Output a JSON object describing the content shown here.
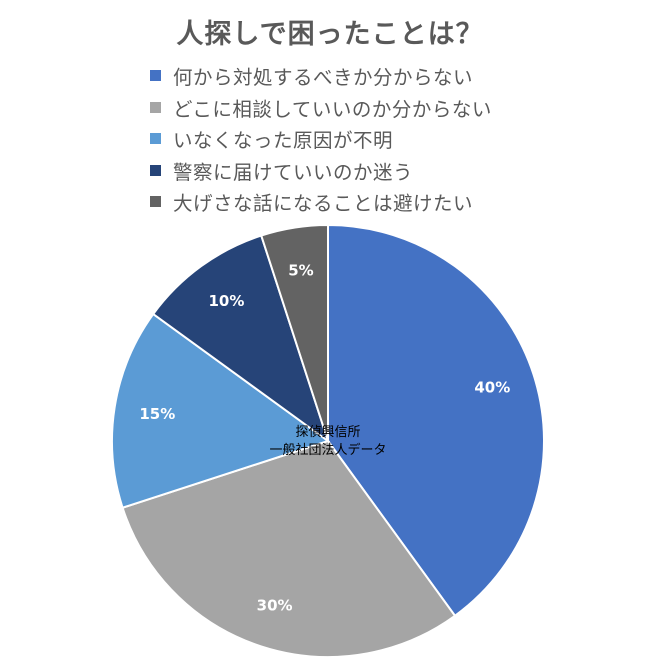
{
  "chart_data": {
    "type": "pie",
    "title": "人探しで困ったことは？",
    "categories": [
      "何から対処するべきか分からない",
      "どこに相談していいのか分からない",
      "いなくなった原因が不明",
      "警察に届けていいのか迷う",
      "大げさな話になることは避けたい"
    ],
    "values": [
      40,
      30,
      15,
      10,
      5
    ],
    "value_labels": [
      "40%",
      "30%",
      "15%",
      "10%",
      "5%"
    ],
    "colors": [
      "#4472C4",
      "#A5A5A5",
      "#5B9BD5",
      "#264478",
      "#636363"
    ],
    "start": "12 o'clock",
    "direction": "clockwise",
    "legend_position": "top",
    "annotation": [
      "探偵興信所",
      "一般社団法人データ"
    ]
  }
}
